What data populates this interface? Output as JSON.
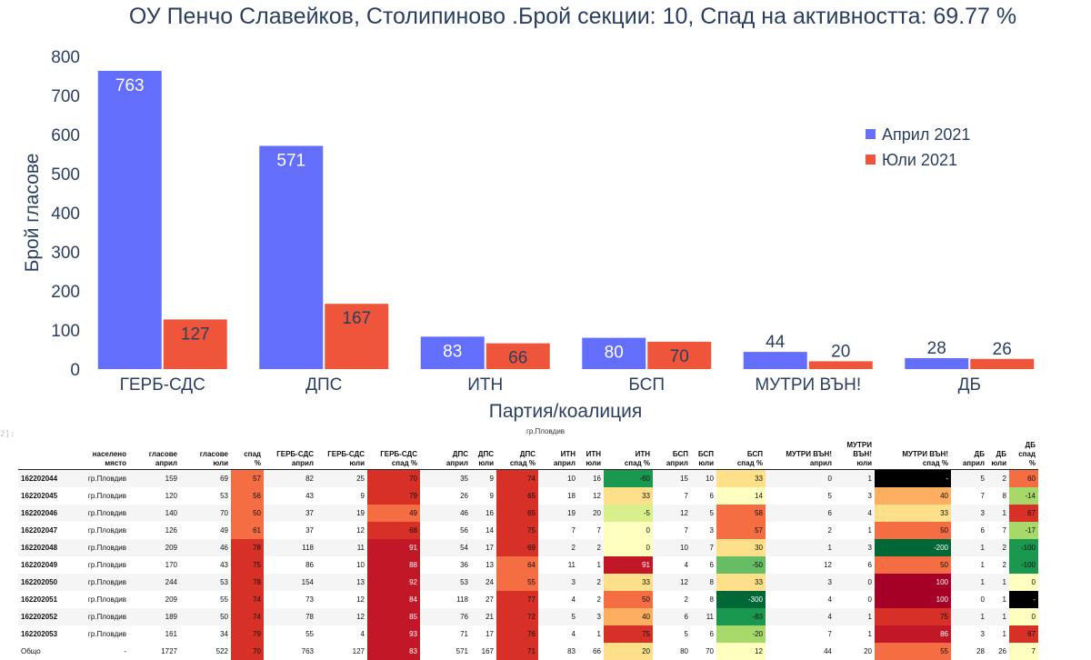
{
  "chart_data": {
    "type": "bar",
    "title": "ОУ Пенчо Славейков, Столипиново .Брой секции: 10,  Спад на активността: 69.77 %",
    "xlabel": "Партия/коалиция",
    "ylabel": "Брой гласове",
    "ylim": [
      0,
      800
    ],
    "yticks": [
      0,
      100,
      200,
      300,
      400,
      500,
      600,
      700,
      800
    ],
    "categories": [
      "ГЕРБ-СДС",
      "ДПС",
      "ИТН",
      "БСП",
      "МУТРИ ВЪН!",
      "ДБ"
    ],
    "series": [
      {
        "name": "Април 2021",
        "color": "#636efa",
        "values": [
          763,
          571,
          83,
          80,
          44,
          28
        ]
      },
      {
        "name": "Юли 2021",
        "color": "#ef553b",
        "values": [
          127,
          167,
          66,
          70,
          20,
          26
        ]
      }
    ],
    "legend_position": "right"
  },
  "prompt": "2]:",
  "table": {
    "caption": "гр.Пловдив",
    "columns": [
      [
        "",
        ""
      ],
      [
        "населено",
        "място"
      ],
      [
        "гласове",
        "април"
      ],
      [
        "гласове",
        "юли"
      ],
      [
        "спад",
        "%"
      ],
      [
        "ГЕРБ-СДС",
        "април"
      ],
      [
        "ГЕРБ-СДС",
        "юли"
      ],
      [
        "ГЕРБ-СДС",
        "спад %"
      ],
      [
        "ДПС",
        "април"
      ],
      [
        "ДПС",
        "юли"
      ],
      [
        "ДПС",
        "спад %"
      ],
      [
        "ИТН",
        "април"
      ],
      [
        "ИТН",
        "юли"
      ],
      [
        "ИТН",
        "спад %"
      ],
      [
        "БСП",
        "април"
      ],
      [
        "БСП",
        "юли"
      ],
      [
        "БСП",
        "спад %"
      ],
      [
        "МУТРИ ВЪН!",
        "април"
      ],
      [
        "МУТРИ",
        "ВЪН! юли"
      ],
      [
        "МУТРИ ВЪН!",
        "спад %"
      ],
      [
        "ДБ",
        "април"
      ],
      [
        "ДБ",
        "юли"
      ],
      [
        "ДБ",
        "спад %"
      ]
    ],
    "rows": [
      [
        "162202044",
        "гр.Пловдив",
        "159",
        "69",
        "57",
        "82",
        "25",
        "70",
        "35",
        "9",
        "74",
        "10",
        "16",
        "-60",
        "15",
        "10",
        "33",
        "0",
        "1",
        "-",
        "5",
        "2",
        "60"
      ],
      [
        "162202045",
        "гр.Пловдив",
        "120",
        "53",
        "56",
        "43",
        "9",
        "79",
        "26",
        "9",
        "65",
        "18",
        "12",
        "33",
        "7",
        "6",
        "14",
        "5",
        "3",
        "40",
        "7",
        "8",
        "-14"
      ],
      [
        "162202046",
        "гр.Пловдив",
        "140",
        "70",
        "50",
        "37",
        "19",
        "49",
        "46",
        "16",
        "65",
        "19",
        "20",
        "-5",
        "12",
        "5",
        "58",
        "6",
        "4",
        "33",
        "3",
        "1",
        "67"
      ],
      [
        "162202047",
        "гр.Пловдив",
        "126",
        "49",
        "61",
        "37",
        "12",
        "68",
        "56",
        "14",
        "75",
        "7",
        "7",
        "0",
        "7",
        "3",
        "57",
        "2",
        "1",
        "50",
        "6",
        "7",
        "-17"
      ],
      [
        "162202048",
        "гр.Пловдив",
        "209",
        "46",
        "78",
        "118",
        "11",
        "91",
        "54",
        "17",
        "69",
        "2",
        "2",
        "0",
        "10",
        "7",
        "30",
        "1",
        "3",
        "-200",
        "1",
        "2",
        "-100"
      ],
      [
        "162202049",
        "гр.Пловдив",
        "170",
        "43",
        "75",
        "86",
        "10",
        "88",
        "36",
        "13",
        "64",
        "11",
        "1",
        "91",
        "4",
        "6",
        "-50",
        "12",
        "6",
        "50",
        "1",
        "2",
        "-100"
      ],
      [
        "162202050",
        "гр.Пловдив",
        "244",
        "53",
        "78",
        "154",
        "13",
        "92",
        "53",
        "24",
        "55",
        "3",
        "2",
        "33",
        "12",
        "8",
        "33",
        "3",
        "0",
        "100",
        "1",
        "1",
        "0"
      ],
      [
        "162202051",
        "гр.Пловдив",
        "209",
        "55",
        "74",
        "73",
        "12",
        "84",
        "118",
        "27",
        "77",
        "4",
        "2",
        "50",
        "2",
        "8",
        "-300",
        "4",
        "0",
        "100",
        "0",
        "1",
        "-"
      ],
      [
        "162202052",
        "гр.Пловдив",
        "189",
        "50",
        "74",
        "78",
        "12",
        "85",
        "76",
        "21",
        "72",
        "5",
        "3",
        "40",
        "6",
        "11",
        "-83",
        "4",
        "1",
        "75",
        "1",
        "1",
        "0"
      ],
      [
        "162202053",
        "гр.Пловдив",
        "161",
        "34",
        "79",
        "55",
        "4",
        "93",
        "71",
        "17",
        "76",
        "4",
        "1",
        "75",
        "5",
        "6",
        "-20",
        "7",
        "1",
        "86",
        "3",
        "1",
        "67"
      ],
      [
        "Общо",
        "-",
        "1727",
        "522",
        "70",
        "763",
        "127",
        "83",
        "571",
        "167",
        "71",
        "83",
        "66",
        "20",
        "80",
        "70",
        "12",
        "44",
        "20",
        "55",
        "28",
        "26",
        "7"
      ]
    ]
  }
}
